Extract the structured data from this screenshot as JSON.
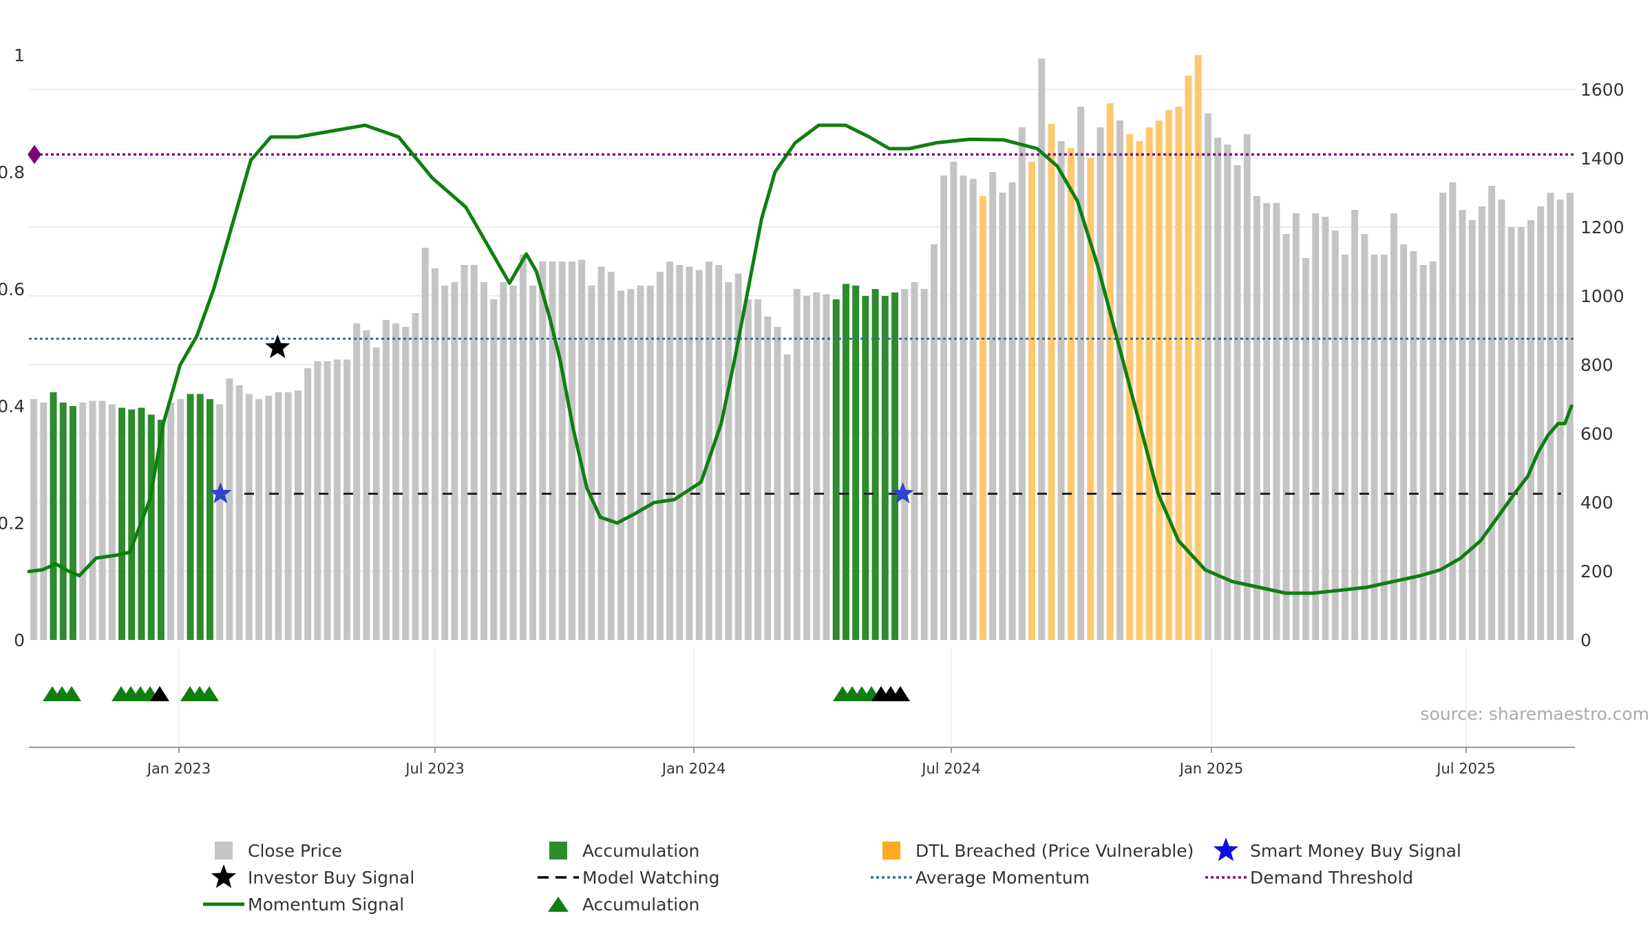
{
  "chart_data": {
    "type": "bar",
    "source_label": "source: sharemaestro.com",
    "left_axis": {
      "ticks": [
        "0",
        "0.2",
        "0.4",
        "0.6",
        "0.8",
        "1"
      ],
      "range": [
        0,
        1
      ]
    },
    "right_axis": {
      "ticks": [
        "0",
        "200",
        "400",
        "600",
        "800",
        "1000",
        "1200",
        "1400",
        "1600"
      ],
      "range": [
        0,
        1700
      ]
    },
    "x_ticks": [
      "Jan 2023",
      "Jul 2023",
      "Jan 2024",
      "Jul 2024",
      "Jan 2025",
      "Jul 2025"
    ],
    "colors": {
      "close": "#c4c4c4",
      "accumulation": "#2e8b2e",
      "dtl": "#ffc86e",
      "momentum": "#0f7f0f",
      "average": "#2a6fa0",
      "demand": "#7a0a7a",
      "watching": "#222222",
      "smart_money": "#3344cc"
    },
    "thresholds": {
      "average_momentum": 0.515,
      "demand_threshold": 0.83,
      "model_watching": 0.25
    },
    "close_price": [
      700,
      690,
      720,
      690,
      680,
      690,
      695,
      695,
      685,
      675,
      670,
      675,
      655,
      640,
      690,
      700,
      715,
      715,
      700,
      685,
      760,
      740,
      715,
      700,
      710,
      720,
      720,
      725,
      790,
      810,
      810,
      815,
      815,
      920,
      900,
      850,
      930,
      920,
      910,
      950,
      1140,
      1080,
      1030,
      1040,
      1090,
      1090,
      1040,
      990,
      1040,
      1030,
      1120,
      1030,
      1100,
      1100,
      1100,
      1100,
      1105,
      1030,
      1085,
      1070,
      1015,
      1020,
      1030,
      1030,
      1070,
      1100,
      1090,
      1085,
      1075,
      1100,
      1090,
      1040,
      1065,
      990,
      990,
      940,
      910,
      830,
      1020,
      1000,
      1010,
      1005,
      990,
      1035,
      1030,
      1000,
      1020,
      1000,
      1010,
      1020,
      1040,
      1020,
      1150,
      1350,
      1390,
      1350,
      1340,
      1290,
      1360,
      1300,
      1330,
      1490,
      1390,
      1690,
      1500,
      1450,
      1430,
      1550,
      1400,
      1490,
      1560,
      1510,
      1470,
      1450,
      1490,
      1510,
      1540,
      1550,
      1640,
      1700,
      1530,
      1460,
      1440,
      1380,
      1470,
      1290,
      1270,
      1270,
      1180,
      1240,
      1110,
      1240,
      1230,
      1190,
      1120,
      1250,
      1180,
      1120,
      1120,
      1240,
      1150,
      1130,
      1090,
      1100,
      1300,
      1330,
      1250,
      1220,
      1260,
      1320,
      1280,
      1200,
      1200,
      1220,
      1260,
      1300,
      1280,
      1300
    ],
    "bar_state": "AAAAAAcAAA00AAAAAAAAAAAAAAAAAAAAAAAAAAAAAAAAAAAAAAAAAAAAAAAAAAAAAAAAAAAAAAAAAAAAAAAAAAAAAAAAAAAAAAAAAAAAAAAAAAAAAAAAAAAAAAAAAAAAAAAAAAAAAAAAAAAAAAAAAAAAAAAAAAAAAAAAAAAAAA",
    "momentum_signal": [
      [
        0,
        0.117
      ],
      [
        4,
        0.12
      ],
      [
        8,
        0.13
      ],
      [
        12,
        0.117
      ],
      [
        15,
        0.11
      ],
      [
        20,
        0.14
      ],
      [
        26,
        0.145
      ],
      [
        30,
        0.15
      ],
      [
        36,
        0.24
      ],
      [
        40,
        0.37
      ],
      [
        45,
        0.47
      ],
      [
        50,
        0.52
      ],
      [
        55,
        0.6
      ],
      [
        60,
        0.7
      ],
      [
        66,
        0.82
      ],
      [
        72,
        0.86
      ],
      [
        80,
        0.86
      ],
      [
        90,
        0.87
      ],
      [
        100,
        0.88
      ],
      [
        110,
        0.86
      ],
      [
        120,
        0.79
      ],
      [
        130,
        0.74
      ],
      [
        138,
        0.66
      ],
      [
        143,
        0.61
      ],
      [
        146,
        0.64
      ],
      [
        148,
        0.66
      ],
      [
        151,
        0.63
      ],
      [
        155,
        0.55
      ]
    ],
    "momentum_signal_b": [
      [
        155,
        0.55
      ],
      [
        158,
        0.48
      ],
      [
        162,
        0.36
      ],
      [
        166,
        0.26
      ],
      [
        170,
        0.21
      ],
      [
        175,
        0.2
      ],
      [
        180,
        0.215
      ],
      [
        186,
        0.235
      ],
      [
        192,
        0.24
      ],
      [
        200,
        0.27
      ],
      [
        206,
        0.37
      ],
      [
        210,
        0.48
      ],
      [
        214,
        0.6
      ],
      [
        218,
        0.72
      ],
      [
        222,
        0.8
      ],
      [
        228,
        0.85
      ],
      [
        235,
        0.88
      ],
      [
        243,
        0.88
      ],
      [
        250,
        0.86
      ],
      [
        256,
        0.84
      ],
      [
        262,
        0.84
      ],
      [
        270,
        0.85
      ],
      [
        280,
        0.856
      ],
      [
        290,
        0.855
      ],
      [
        300,
        0.84
      ],
      [
        306,
        0.81
      ],
      [
        312,
        0.75
      ],
      [
        318,
        0.64
      ],
      [
        324,
        0.51
      ],
      [
        330,
        0.38
      ],
      [
        336,
        0.25
      ],
      [
        342,
        0.17
      ],
      [
        350,
        0.12
      ],
      [
        358,
        0.1
      ],
      [
        366,
        0.09
      ],
      [
        374,
        0.08
      ],
      [
        382,
        0.08
      ],
      [
        390,
        0.085
      ],
      [
        398,
        0.09
      ],
      [
        406,
        0.1
      ],
      [
        414,
        0.11
      ],
      [
        420,
        0.12
      ],
      [
        426,
        0.14
      ],
      [
        432,
        0.17
      ],
      [
        437,
        0.21
      ],
      [
        442,
        0.25
      ],
      [
        446,
        0.28
      ],
      [
        449,
        0.32
      ],
      [
        452,
        0.35
      ],
      [
        455,
        0.37
      ],
      [
        457,
        0.37
      ],
      [
        459,
        0.4
      ]
    ],
    "investor_buy_signal": [
      [
        0.5,
        0.5
      ]
    ],
    "smart_money_buy_signals": [
      [
        0.25,
        0.25
      ],
      [
        0.25,
        0.25
      ]
    ],
    "triangle_markers": [
      {
        "color": "green",
        "count": 3,
        "group": 1
      },
      {
        "color": "green",
        "count": 4,
        "group": 2
      },
      {
        "color": "black",
        "count": 1,
        "group": 2
      },
      {
        "color": "green",
        "count": 3,
        "group": 3
      },
      {
        "color": "green",
        "count": 4,
        "group": 4
      },
      {
        "color": "black",
        "count": 3,
        "group": 4
      }
    ],
    "legend": [
      {
        "key": "close",
        "label": "Close Price"
      },
      {
        "key": "accumulation_bar",
        "label": "Accumulation"
      },
      {
        "key": "dtl",
        "label": "DTL Breached (Price Vulnerable)"
      },
      {
        "key": "smart_money",
        "label": "Smart Money Buy Signal"
      },
      {
        "key": "investor",
        "label": "Investor Buy Signal"
      },
      {
        "key": "watching",
        "label": "Model Watching"
      },
      {
        "key": "average",
        "label": "Average Momentum"
      },
      {
        "key": "demand",
        "label": "Demand Threshold"
      },
      {
        "key": "momentum",
        "label": "Momentum Signal"
      },
      {
        "key": "accumulation_triangle",
        "label": "Accumulation"
      }
    ]
  }
}
